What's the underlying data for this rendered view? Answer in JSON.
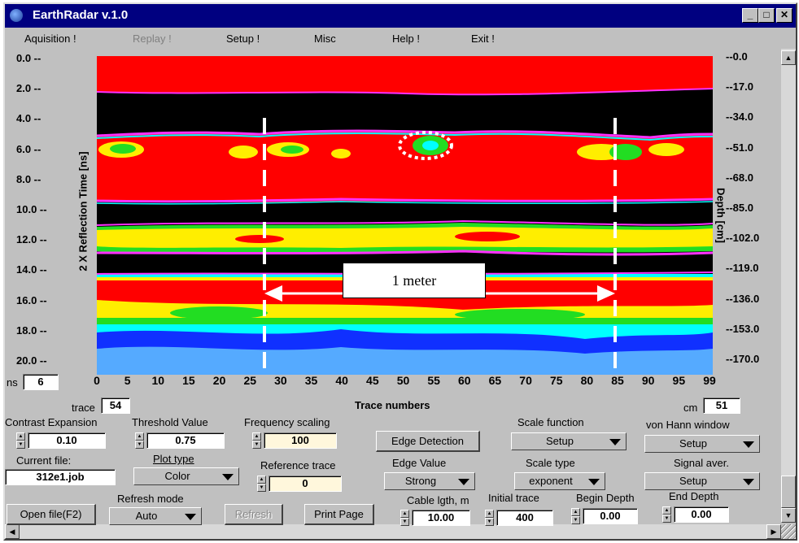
{
  "window": {
    "title": "EarthRadar v.1.0",
    "icon": "app-globe-icon"
  },
  "titlebar_buttons": {
    "minimize": "_",
    "maximize": "□",
    "close": "✕"
  },
  "menu": {
    "items": [
      {
        "label": "Aquisition !",
        "enabled": true
      },
      {
        "label": "Replay !",
        "enabled": false
      },
      {
        "label": "Setup !",
        "enabled": true
      },
      {
        "label": "Misc",
        "enabled": true
      },
      {
        "label": "Help !",
        "enabled": true
      },
      {
        "label": "Exit !",
        "enabled": true
      }
    ]
  },
  "plot": {
    "left_ticks": [
      "0.0 --",
      "2.0 --",
      "4.0 --",
      "6.0 --",
      "8.0 --",
      "10.0 --",
      "12.0 --",
      "14.0 --",
      "16.0 --",
      "18.0 --",
      "20.0 --"
    ],
    "right_ticks": [
      "--0.0",
      "--17.0",
      "--34.0",
      "--51.0",
      "--68.0",
      "--85.0",
      "--102.0",
      "--119.0",
      "--136.0",
      "--153.0",
      "--170.0"
    ],
    "bottom_ticks": [
      "0",
      "5",
      "10",
      "15",
      "20",
      "25",
      "30",
      "35",
      "40",
      "45",
      "50",
      "55",
      "60",
      "65",
      "70",
      "75",
      "80",
      "85",
      "90",
      "95",
      "99"
    ],
    "left_axis_label": "2 X Reflection Time [ns]",
    "right_axis_label": "Depth [cm]",
    "bottom_axis_label": "Trace numbers",
    "annotation": "1 meter",
    "colors": {
      "red": "#ff0000",
      "black": "#000000",
      "yellow": "#ffee00",
      "green": "#22dd22",
      "cyan": "#00ffff",
      "blue": "#1030ff",
      "magenta": "#ff30ff",
      "light_blue": "#55aaff"
    }
  },
  "controls": {
    "ns_label": "ns",
    "ns_value": "6",
    "trace_label": "trace",
    "trace_value": "54",
    "cm_label": "cm",
    "cm_value": "51",
    "contrast_label": "Contrast Expansion",
    "contrast_value": "0.10",
    "threshold_label": "Threshold Value",
    "threshold_value": "0.75",
    "frequency_label": "Frequency scaling",
    "frequency_value": "100",
    "edge_detection_button": "Edge Detection",
    "scale_function_label": "Scale function",
    "scale_function_value": "Setup",
    "von_hann_label": "von Hann window",
    "von_hann_value": "Setup",
    "current_file_label": "Current file:",
    "current_file_value": "312e1.job",
    "plot_type_label": "Plot type",
    "plot_type_value": "Color",
    "reference_trace_label": "Reference trace",
    "reference_trace_value": "0",
    "edge_value_label": "Edge Value",
    "edge_value_value": "Strong",
    "scale_type_label": "Scale type",
    "scale_type_value": "exponent",
    "signal_aver_label": "Signal aver.",
    "signal_aver_value": "Setup",
    "refresh_mode_label": "Refresh mode",
    "refresh_mode_value": "Auto",
    "cable_label": "Cable lgth, m",
    "cable_value": "10.00",
    "initial_trace_label": "Initial trace",
    "initial_trace_value": "400",
    "begin_depth_label": "Begin Depth",
    "begin_depth_value": "0.00",
    "end_depth_label": "End Depth",
    "end_depth_value": "0.00",
    "open_file_button": "Open file(F2)",
    "refresh_button": "Refresh",
    "print_page_button": "Print Page"
  }
}
